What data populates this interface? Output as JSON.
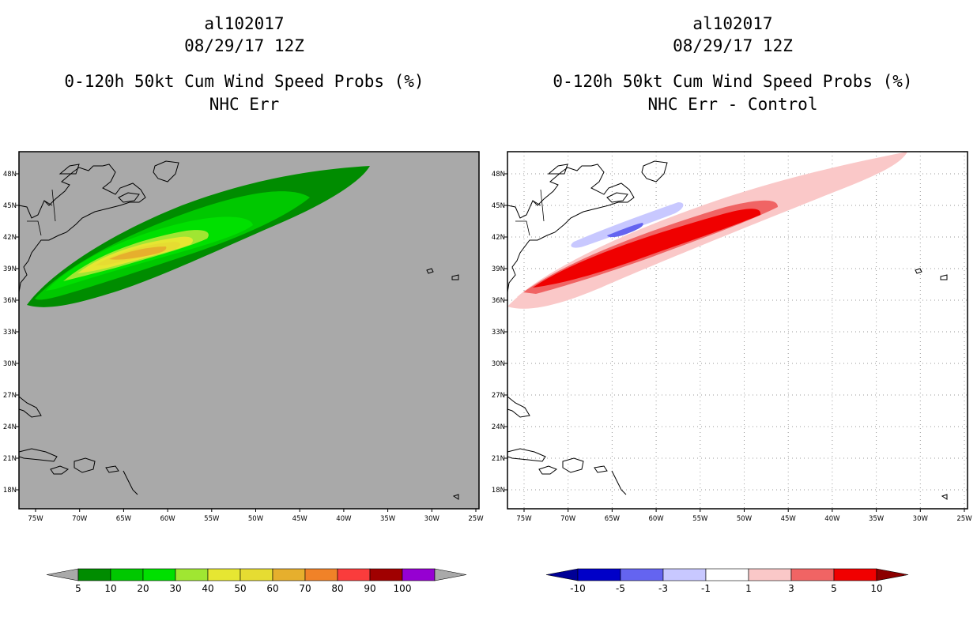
{
  "panels": [
    {
      "storm_id": "al102017",
      "datetime": "08/29/17 12Z",
      "product": "0-120h 50kt Cum Wind Speed Probs (%)",
      "subtitle": "NHC Err",
      "background": "#a9a9a9",
      "colorbar": {
        "labels": [
          "5",
          "10",
          "20",
          "30",
          "40",
          "50",
          "60",
          "70",
          "80",
          "90",
          "100"
        ],
        "colors": [
          "#008c00",
          "#00c800",
          "#00e000",
          "#a0e632",
          "#e6e632",
          "#e6dc32",
          "#e6af2d",
          "#f08228",
          "#fa3c3c",
          "#a00000",
          "#9600d2"
        ],
        "left_arrow": "#a9a9a9",
        "right_arrow": "#a9a9a9"
      }
    },
    {
      "storm_id": "al102017",
      "datetime": "08/29/17 12Z",
      "product": "0-120h 50kt Cum Wind Speed Probs (%)",
      "subtitle": "NHC Err - Control",
      "background": "#ffffff",
      "colorbar": {
        "labels": [
          "-10",
          "-5",
          "-3",
          "-1",
          "1",
          "3",
          "5",
          "10"
        ],
        "colors": [
          "#0000c8",
          "#6464f0",
          "#c8c8ff",
          "#ffffff",
          "#fac8c8",
          "#f06464",
          "#f00000"
        ],
        "left_arrow": "#000096",
        "right_arrow": "#8c0000"
      }
    }
  ],
  "axes": {
    "lon_labels": [
      "75W",
      "70W",
      "65W",
      "60W",
      "55W",
      "50W",
      "45W",
      "40W",
      "35W",
      "30W",
      "25W"
    ],
    "lat_labels": [
      "48N",
      "45N",
      "42N",
      "39N",
      "36N",
      "33N",
      "30N",
      "27N",
      "24N",
      "21N",
      "18N"
    ]
  }
}
